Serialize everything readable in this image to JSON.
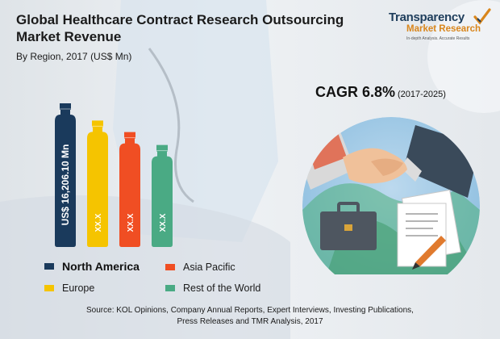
{
  "header": {
    "title": "Global Healthcare Contract Research Outsourcing Market Revenue",
    "subtitle": "By Region, 2017 (US$ Mn)"
  },
  "logo": {
    "line1": "Transparency",
    "line2": "Market Research",
    "tagline": "In-depth Analysis. Accurate Results"
  },
  "cagr": {
    "label": "CAGR 6.8%",
    "period": "(2017-2025)"
  },
  "legend": {
    "items": [
      {
        "label": "North America",
        "color": "#1a3a5c"
      },
      {
        "label": "Asia Pacific",
        "color": "#f04e23"
      },
      {
        "label": "Europe",
        "color": "#f5c400"
      },
      {
        "label": "Rest of the World",
        "color": "#4aaa84"
      }
    ]
  },
  "source": {
    "line1": "Source: KOL Opinions, Company Annual Reports, Expert Interviews, Investing Publications,",
    "line2": "Press Releases and TMR Analysis, 2017"
  },
  "chart_data": {
    "type": "bar",
    "categories": [
      "North America",
      "Europe",
      "Asia Pacific",
      "Rest of the World"
    ],
    "values": [
      16206.1,
      null,
      null,
      null
    ],
    "data_labels": [
      "US$ 16,206.10 Mn",
      "XX.X",
      "XX.X",
      "XX.X"
    ],
    "colors": [
      "#1a3a5c",
      "#f5c400",
      "#f04e23",
      "#4aaa84"
    ],
    "relative_heights": [
      1.0,
      0.88,
      0.8,
      0.71
    ],
    "title": "Global Healthcare Contract Research Outsourcing Market Revenue",
    "subtitle": "By Region, 2017 (US$ Mn)",
    "xlabel": "",
    "ylabel": "",
    "grid": false,
    "legend_position": "bottom"
  }
}
